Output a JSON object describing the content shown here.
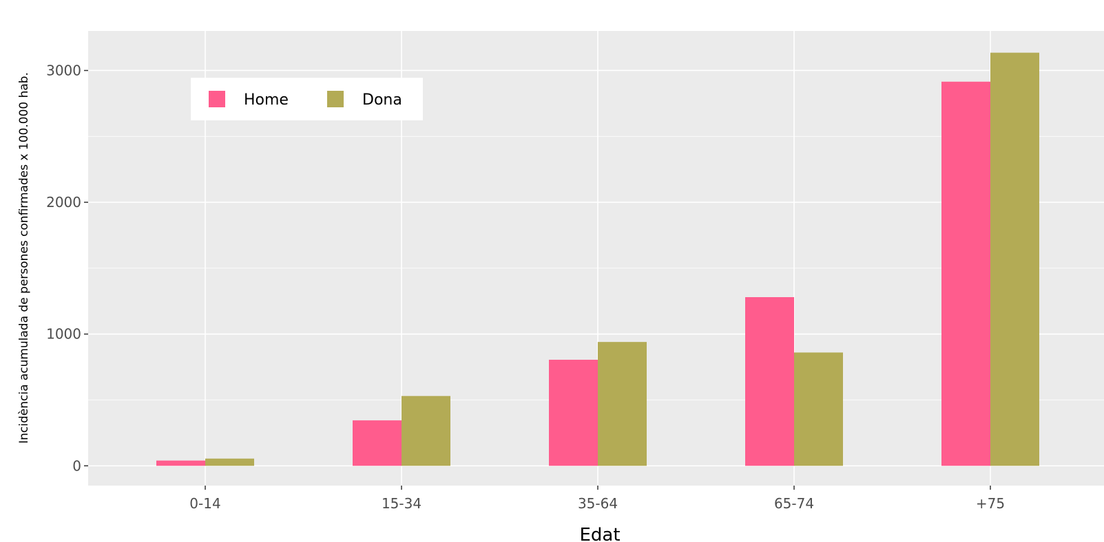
{
  "chart_data": {
    "type": "bar",
    "title": "",
    "xlabel": "Edat",
    "ylabel": "Incidència acumulada de persones confirmades x 100.000 hab.",
    "categories": [
      "0-14",
      "15-34",
      "35-64",
      "65-74",
      "+75"
    ],
    "series": [
      {
        "name": "Home",
        "color": "#ff5c8d",
        "values": [
          40,
          345,
          805,
          1280,
          2915
        ]
      },
      {
        "name": "Dona",
        "color": "#b3ab55",
        "values": [
          55,
          530,
          940,
          860,
          3135
        ]
      }
    ],
    "ylim": [
      -150,
      3300
    ],
    "yticks": [
      0,
      1000,
      2000,
      3000
    ],
    "ytick_labels": [
      "0",
      "1000",
      "2000",
      "3000"
    ],
    "grid": true,
    "legend_position": "top-left",
    "panel_color": "#ebebeb",
    "grid_color": "#ffffff"
  }
}
